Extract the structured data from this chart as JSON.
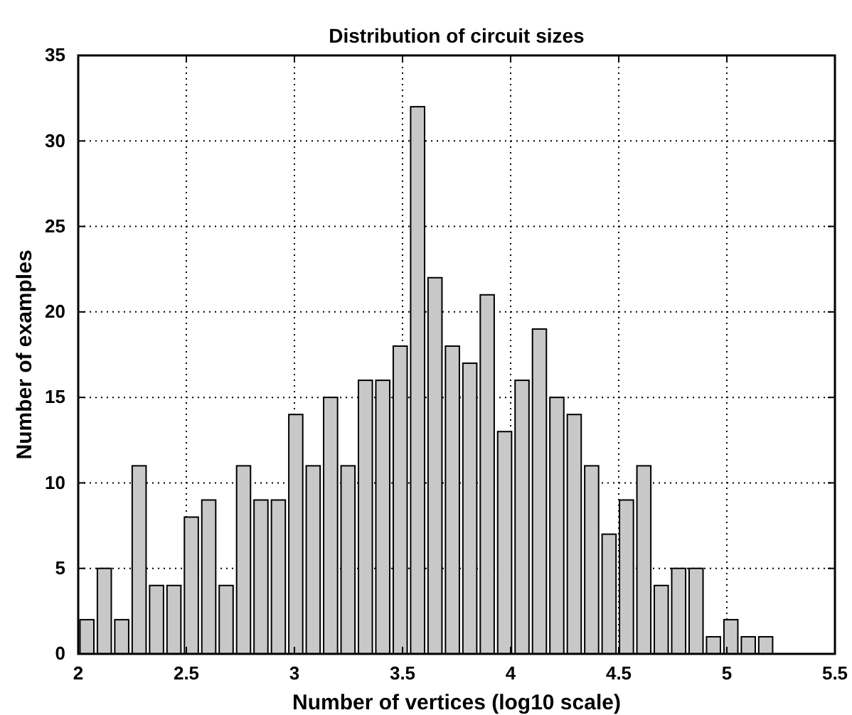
{
  "chart_data": {
    "type": "histogram",
    "title": "Distribution of circuit sizes",
    "xlabel": "Number of vertices (log10 scale)",
    "ylabel": "Number of examples",
    "bins": [
      2,
      2.0805,
      2.161,
      2.2415,
      2.322,
      2.4025,
      2.483,
      2.5635,
      2.644,
      2.7245,
      2.805,
      2.8855,
      2.966,
      3.0465,
      3.127,
      3.2075,
      3.288,
      3.3685,
      3.449,
      3.5295,
      3.61,
      3.6905,
      3.771,
      3.8515,
      3.932,
      4.0125,
      4.093,
      4.1735,
      4.254,
      4.3345,
      4.415,
      4.4955,
      4.576,
      4.6565,
      4.737,
      4.8175,
      4.898,
      4.9785,
      5.059,
      5.1395,
      5.22
    ],
    "values": [
      2,
      5,
      2,
      11,
      4,
      4,
      8,
      9,
      4,
      11,
      9,
      9,
      14,
      11,
      15,
      11,
      16,
      16,
      18,
      32,
      22,
      18,
      17,
      21,
      13,
      16,
      19,
      15,
      14,
      11,
      7,
      9,
      11,
      4,
      5,
      5,
      1,
      2,
      1,
      1
    ],
    "color": "#c8c8c8",
    "xlim": [
      2,
      5.5
    ],
    "xticks": [
      2,
      2.5,
      3,
      3.5,
      4,
      4.5,
      5,
      5.5
    ],
    "ylim": [
      0,
      35
    ],
    "yticks": [
      0,
      5,
      10,
      15,
      20,
      25,
      30,
      35
    ],
    "grid": true
  }
}
